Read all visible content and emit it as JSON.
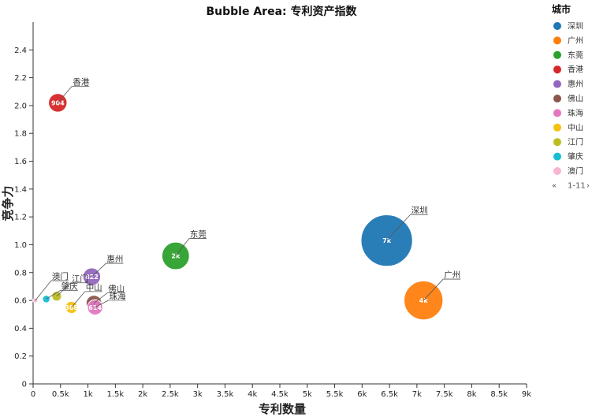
{
  "chart_data": {
    "type": "scatter",
    "title": "Bubble Area: 专利资产指数",
    "xlabel": "专利数量",
    "ylabel": "竞争力",
    "xlim": [
      0,
      9000
    ],
    "ylim": [
      0,
      2.6
    ],
    "x_ticks": [
      "0",
      "0.5k",
      "1k",
      "1.5k",
      "2k",
      "2.5k",
      "3k",
      "3.5k",
      "4k",
      "4.5k",
      "5k",
      "5.5k",
      "6k",
      "6.5k",
      "7k",
      "7.5k",
      "8k",
      "8.5k",
      "9k"
    ],
    "x_tick_values": [
      0,
      500,
      1000,
      1500,
      2000,
      2500,
      3000,
      3500,
      4000,
      4500,
      5000,
      5500,
      6000,
      6500,
      7000,
      7500,
      8000,
      8500,
      9000
    ],
    "y_ticks": [
      "0",
      "0.2",
      "0.4",
      "0.6",
      "0.8",
      "1.0",
      "1.2",
      "1.4",
      "1.6",
      "1.8",
      "2.0",
      "2.2",
      "2.4"
    ],
    "y_tick_values": [
      0,
      0.2,
      0.4,
      0.6,
      0.8,
      1.0,
      1.2,
      1.4,
      1.6,
      1.8,
      2.0,
      2.2,
      2.4
    ],
    "grid": false,
    "legend": {
      "title": "城市",
      "position": "right",
      "pager": "1-11",
      "items": [
        {
          "name": "深圳",
          "color": "#1f77b4"
        },
        {
          "name": "广州",
          "color": "#ff7f0e"
        },
        {
          "name": "东莞",
          "color": "#2ca02c"
        },
        {
          "name": "香港",
          "color": "#d62728"
        },
        {
          "name": "惠州",
          "color": "#9467bd"
        },
        {
          "name": "佛山",
          "color": "#8c564b"
        },
        {
          "name": "珠海",
          "color": "#e377c2"
        },
        {
          "name": "中山",
          "color": "#f5c211"
        },
        {
          "name": "江门",
          "color": "#bcbd22"
        },
        {
          "name": "肇庆",
          "color": "#17becf"
        },
        {
          "name": "澳门",
          "color": "#f7b6d2"
        }
      ]
    },
    "points": [
      {
        "city": "深圳",
        "x": 6450,
        "y": 1.03,
        "size": 7000,
        "label": "7k",
        "color": "#1f77b4"
      },
      {
        "city": "广州",
        "x": 7120,
        "y": 0.6,
        "size": 4000,
        "label": "4k",
        "color": "#ff7f0e"
      },
      {
        "city": "东莞",
        "x": 2600,
        "y": 0.92,
        "size": 2000,
        "label": "2k",
        "color": "#2ca02c"
      },
      {
        "city": "香港",
        "x": 450,
        "y": 2.02,
        "size": 904,
        "label": "904",
        "color": "#d62728"
      },
      {
        "city": "惠州",
        "x": 1070,
        "y": 0.77,
        "size": 822,
        "label": "822",
        "color": "#9467bd"
      },
      {
        "city": "佛山",
        "x": 1110,
        "y": 0.58,
        "size": 650,
        "label": "",
        "color": "#8c564b"
      },
      {
        "city": "珠海",
        "x": 1130,
        "y": 0.55,
        "size": 614,
        "label": "614",
        "color": "#e377c2"
      },
      {
        "city": "中山",
        "x": 700,
        "y": 0.55,
        "size": 388,
        "label": "388",
        "color": "#f5c211"
      },
      {
        "city": "江门",
        "x": 430,
        "y": 0.63,
        "size": 250,
        "label": "",
        "color": "#bcbd22"
      },
      {
        "city": "肇庆",
        "x": 240,
        "y": 0.61,
        "size": 150,
        "label": "",
        "color": "#17becf"
      },
      {
        "city": "澳门",
        "x": 40,
        "y": 0.6,
        "size": 20,
        "label": "",
        "color": "#f7b6d2"
      }
    ]
  }
}
